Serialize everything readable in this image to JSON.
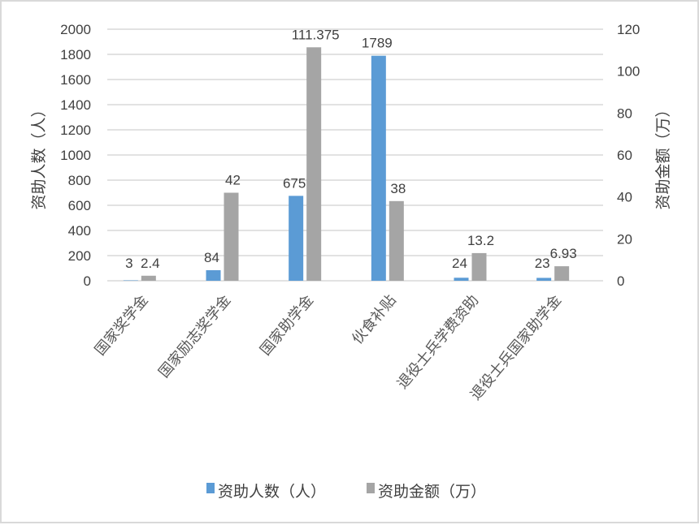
{
  "chart_data": {
    "type": "bar",
    "categories": [
      "国家奖学金",
      "国家励志奖学金",
      "国家助学金",
      "伙食补贴",
      "退役士兵学费资助",
      "退役士兵国家助学金"
    ],
    "series": [
      {
        "name": "资助人数（人）",
        "axis": "left",
        "color": "#5b9bd5",
        "values": [
          3,
          84,
          675,
          1789,
          24,
          23
        ],
        "labels": [
          "3",
          "84",
          "675",
          "1789",
          "24",
          "23"
        ]
      },
      {
        "name": "资助金额（万）",
        "axis": "right",
        "color": "#a5a5a5",
        "values": [
          2.4,
          42,
          111.375,
          38,
          13.2,
          6.93
        ],
        "labels": [
          "2.4",
          "42",
          "111.375",
          "38",
          "13.2",
          "6.93"
        ]
      }
    ],
    "ylabel_left": "资助人数（人）",
    "ylabel_right": "资助金额（万）",
    "ylim_left": [
      0,
      2000
    ],
    "yticks_left": [
      "0",
      "200",
      "400",
      "600",
      "800",
      "1000",
      "1200",
      "1400",
      "1600",
      "1800",
      "2000"
    ],
    "ylim_right": [
      0,
      120
    ],
    "yticks_right": [
      "0",
      "20",
      "40",
      "60",
      "80",
      "100",
      "120"
    ],
    "grid": true,
    "legend_position": "bottom"
  }
}
